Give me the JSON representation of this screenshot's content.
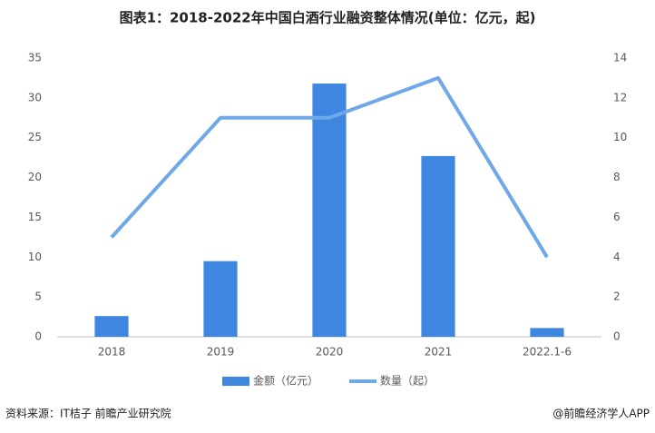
{
  "chart_data": {
    "type": "bar",
    "title": "图表1：2018-2022年中国白酒行业融资整体情况(单位：亿元，起)",
    "categories": [
      "2018",
      "2019",
      "2020",
      "2021",
      "2022.1-6"
    ],
    "series": [
      {
        "name": "金额（亿元）",
        "color": "#3f86e0",
        "type": "bar",
        "values": [
          2.6,
          9.5,
          31.8,
          22.7,
          1.1
        ]
      },
      {
        "name": "数量（起）",
        "color": "#6fa8e8",
        "type": "line",
        "axis": "y2",
        "values": [
          5,
          11,
          11,
          13,
          4
        ]
      }
    ],
    "ylim": [
      0,
      35
    ],
    "yticks": [
      0,
      5,
      10,
      15,
      20,
      25,
      30,
      35
    ],
    "y2lim": [
      0,
      14
    ],
    "y2ticks": [
      0,
      2,
      4,
      6,
      8,
      10,
      12,
      14
    ],
    "grid": false,
    "legend": "bottom",
    "source": "资料来源：IT桔子 前瞻产业研究院",
    "credit": "@前瞻经济学人APP"
  }
}
